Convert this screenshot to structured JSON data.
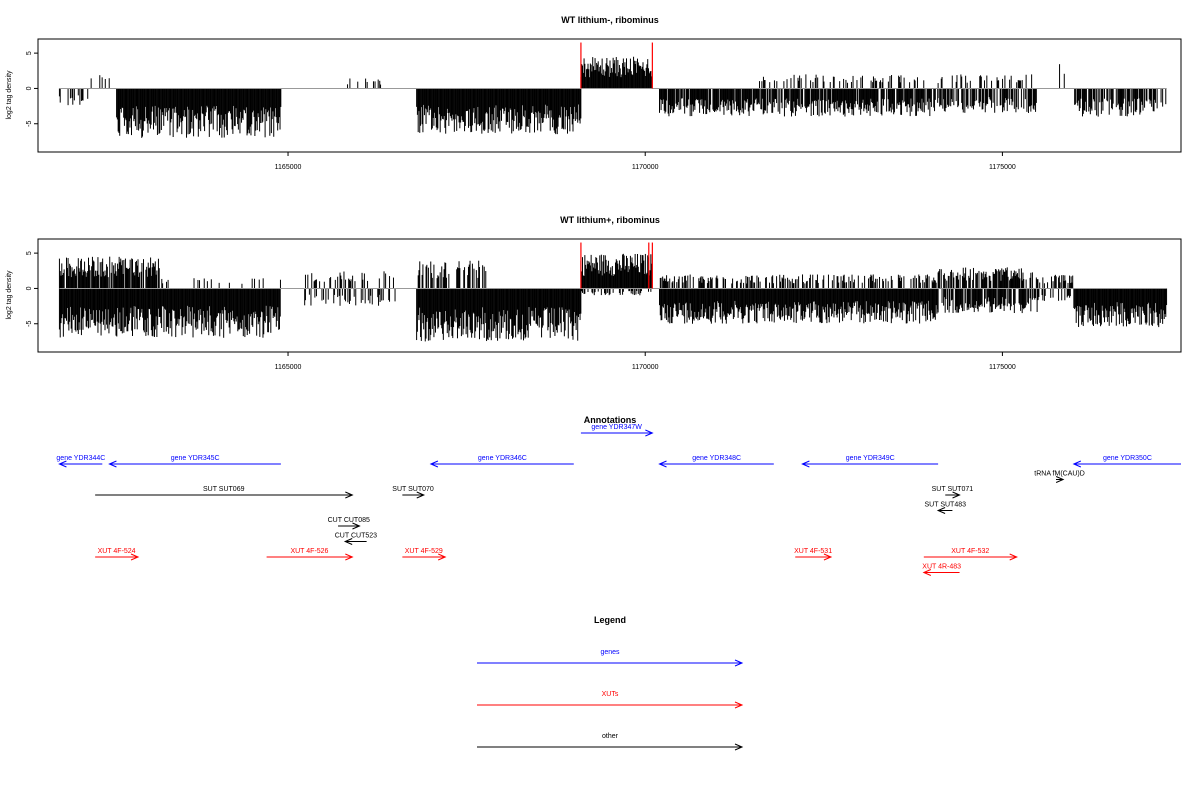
{
  "chart_data": [
    {
      "type": "bar",
      "title": "WT lithium-, ribominus",
      "ylabel": "log2 tag density",
      "xlabel": "",
      "xlim": [
        1161500,
        1177500
      ],
      "ylim": [
        -9,
        7
      ],
      "xticks": [
        1165000,
        1170000,
        1175000
      ],
      "xtick_labels": [
        "1165000",
        "1170000",
        "1175000"
      ],
      "yticks": [
        5,
        0,
        -5
      ],
      "ytick_labels": [
        "5",
        "0",
        "-5"
      ],
      "baseline": 0,
      "colors": {
        "bars": "#000000",
        "markers": "#ff0000",
        "baseline": "#999999"
      },
      "markers": [
        {
          "x": 1169100,
          "value": 6.5
        },
        {
          "x": 1170100,
          "value": 6.5
        }
      ],
      "segments": [
        {
          "start": 1161800,
          "end": 1162200,
          "sign": -1,
          "amp": 2.5,
          "density": 0.35
        },
        {
          "start": 1162200,
          "end": 1162500,
          "sign": 1,
          "amp": 2.0,
          "density": 0.2
        },
        {
          "start": 1162600,
          "end": 1164900,
          "sign": -1,
          "amp": 7.0,
          "density": 1.0
        },
        {
          "start": 1165800,
          "end": 1166300,
          "sign": 1,
          "amp": 1.5,
          "density": 0.2
        },
        {
          "start": 1166800,
          "end": 1169100,
          "sign": -1,
          "amp": 6.5,
          "density": 1.0
        },
        {
          "start": 1169100,
          "end": 1170100,
          "sign": 1,
          "amp": 4.5,
          "density": 1.0
        },
        {
          "start": 1170200,
          "end": 1174100,
          "sign": -1,
          "amp": 4.0,
          "density": 0.85
        },
        {
          "start": 1171600,
          "end": 1174100,
          "sign": 1,
          "amp": 2.0,
          "density": 0.25
        },
        {
          "start": 1174100,
          "end": 1175500,
          "sign": -1,
          "amp": 3.5,
          "density": 0.7
        },
        {
          "start": 1174100,
          "end": 1175500,
          "sign": 1,
          "amp": 2.0,
          "density": 0.3
        },
        {
          "start": 1175800,
          "end": 1175900,
          "sign": 1,
          "amp": 3.5,
          "density": 0.3
        },
        {
          "start": 1176000,
          "end": 1177300,
          "sign": -1,
          "amp": 4.0,
          "density": 0.7
        }
      ]
    },
    {
      "type": "bar",
      "title": "WT lithium+, ribominus",
      "ylabel": "log2 tag density",
      "xlabel": "",
      "xlim": [
        1161500,
        1177500
      ],
      "ylim": [
        -9,
        7
      ],
      "xticks": [
        1165000,
        1170000,
        1175000
      ],
      "xtick_labels": [
        "1165000",
        "1170000",
        "1175000"
      ],
      "yticks": [
        5,
        0,
        -5
      ],
      "ytick_labels": [
        "5",
        "0",
        "-5"
      ],
      "baseline": 0,
      "colors": {
        "bars": "#000000",
        "markers": "#ff0000",
        "baseline": "#999999"
      },
      "markers": [
        {
          "x": 1169100,
          "value": 6.5
        },
        {
          "x": 1170050,
          "value": 6.5
        },
        {
          "x": 1170100,
          "value": 6.5
        }
      ],
      "segments": [
        {
          "start": 1161800,
          "end": 1164900,
          "sign": -1,
          "amp": 7.0,
          "density": 1.0
        },
        {
          "start": 1161800,
          "end": 1163200,
          "sign": 1,
          "amp": 4.5,
          "density": 0.9
        },
        {
          "start": 1163200,
          "end": 1164900,
          "sign": 1,
          "amp": 1.5,
          "density": 0.15
        },
        {
          "start": 1165200,
          "end": 1166500,
          "sign": -1,
          "amp": 2.5,
          "density": 0.3
        },
        {
          "start": 1165200,
          "end": 1166500,
          "sign": 1,
          "amp": 2.5,
          "density": 0.3
        },
        {
          "start": 1166800,
          "end": 1169100,
          "sign": -1,
          "amp": 7.5,
          "density": 1.0
        },
        {
          "start": 1166800,
          "end": 1167800,
          "sign": 1,
          "amp": 4.0,
          "density": 0.5
        },
        {
          "start": 1169100,
          "end": 1170100,
          "sign": 1,
          "amp": 5.0,
          "density": 1.0
        },
        {
          "start": 1169100,
          "end": 1170100,
          "sign": -1,
          "amp": 1.0,
          "density": 0.3
        },
        {
          "start": 1170200,
          "end": 1174100,
          "sign": -1,
          "amp": 5.0,
          "density": 1.0
        },
        {
          "start": 1170200,
          "end": 1174100,
          "sign": 1,
          "amp": 2.0,
          "density": 0.45
        },
        {
          "start": 1174100,
          "end": 1175500,
          "sign": 1,
          "amp": 3.0,
          "density": 0.8
        },
        {
          "start": 1174100,
          "end": 1175500,
          "sign": -1,
          "amp": 3.5,
          "density": 0.7
        },
        {
          "start": 1175500,
          "end": 1176000,
          "sign": -1,
          "amp": 2.0,
          "density": 0.4
        },
        {
          "start": 1175500,
          "end": 1176000,
          "sign": 1,
          "amp": 2.0,
          "density": 0.4
        },
        {
          "start": 1176000,
          "end": 1177300,
          "sign": -1,
          "amp": 5.5,
          "density": 1.0
        }
      ]
    }
  ],
  "annotations": {
    "title": "Annotations",
    "colors": {
      "gene": "#0000ff",
      "xut": "#ff0000",
      "other": "#000000"
    },
    "features": [
      {
        "label": "gene YDR344C",
        "kind": "gene",
        "start": 1161800,
        "end": 1162400,
        "strand": "-",
        "row": 0
      },
      {
        "label": "gene YDR345C",
        "kind": "gene",
        "start": 1162500,
        "end": 1164900,
        "strand": "-",
        "row": 0
      },
      {
        "label": "gene YDR346C",
        "kind": "gene",
        "start": 1167000,
        "end": 1169000,
        "strand": "-",
        "row": 0
      },
      {
        "label": "gene YDR347W",
        "kind": "gene",
        "start": 1169100,
        "end": 1170100,
        "strand": "+",
        "row": -1
      },
      {
        "label": "gene YDR348C",
        "kind": "gene",
        "start": 1170200,
        "end": 1171800,
        "strand": "-",
        "row": 0
      },
      {
        "label": "gene YDR349C",
        "kind": "gene",
        "start": 1172200,
        "end": 1174100,
        "strand": "-",
        "row": 0
      },
      {
        "label": "gene YDR350C",
        "kind": "gene",
        "start": 1176000,
        "end": 1177500,
        "strand": "-",
        "row": 0
      },
      {
        "label": "tRNA fM(CAU)D",
        "kind": "other",
        "start": 1175750,
        "end": 1175850,
        "strand": "+",
        "row": 0.5
      },
      {
        "label": "SUT SUT069",
        "kind": "other",
        "start": 1162300,
        "end": 1165900,
        "strand": "+",
        "row": 1
      },
      {
        "label": "SUT SUT070",
        "kind": "other",
        "start": 1166600,
        "end": 1166900,
        "strand": "+",
        "row": 1
      },
      {
        "label": "SUT SUT071",
        "kind": "other",
        "start": 1174200,
        "end": 1174400,
        "strand": "+",
        "row": 1
      },
      {
        "label": "SUT SUT483",
        "kind": "other",
        "start": 1174100,
        "end": 1174300,
        "strand": "-",
        "row": 1.5
      },
      {
        "label": "CUT CUT085",
        "kind": "other",
        "start": 1165700,
        "end": 1166000,
        "strand": "+",
        "row": 2
      },
      {
        "label": "CUT CUT523",
        "kind": "other",
        "start": 1165800,
        "end": 1166100,
        "strand": "-",
        "row": 2.5
      },
      {
        "label": "XUT 4F-524",
        "kind": "xut",
        "start": 1162300,
        "end": 1162900,
        "strand": "+",
        "row": 3
      },
      {
        "label": "XUT 4F-526",
        "kind": "xut",
        "start": 1164700,
        "end": 1165900,
        "strand": "+",
        "row": 3
      },
      {
        "label": "XUT 4F-529",
        "kind": "xut",
        "start": 1166600,
        "end": 1167200,
        "strand": "+",
        "row": 3
      },
      {
        "label": "XUT 4F-531",
        "kind": "xut",
        "start": 1172100,
        "end": 1172600,
        "strand": "+",
        "row": 3
      },
      {
        "label": "XUT 4F-532",
        "kind": "xut",
        "start": 1173900,
        "end": 1175200,
        "strand": "+",
        "row": 3
      },
      {
        "label": "XUT 4R-483",
        "kind": "xut",
        "start": 1173900,
        "end": 1174400,
        "strand": "-",
        "row": 3.5
      }
    ]
  },
  "legend": {
    "title": "Legend",
    "items": [
      {
        "label": "genes",
        "color": "#0000ff"
      },
      {
        "label": "XUTs",
        "color": "#ff0000"
      },
      {
        "label": "other",
        "color": "#000000"
      }
    ]
  }
}
